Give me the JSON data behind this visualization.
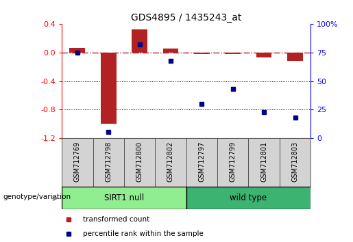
{
  "title": "GDS4895 / 1435243_at",
  "samples": [
    "GSM712769",
    "GSM712798",
    "GSM712800",
    "GSM712802",
    "GSM712797",
    "GSM712799",
    "GSM712801",
    "GSM712803"
  ],
  "transformed_count": [
    0.07,
    -1.0,
    0.33,
    0.06,
    -0.02,
    -0.02,
    -0.07,
    -0.12
  ],
  "percentile_rank": [
    75,
    5,
    82,
    68,
    30,
    43,
    23,
    18
  ],
  "groups": [
    {
      "label": "SIRT1 null",
      "n": 4,
      "color": "#90EE90"
    },
    {
      "label": "wild type",
      "n": 4,
      "color": "#3CB371"
    }
  ],
  "bar_color": "#B22222",
  "dot_color": "#00008B",
  "ylim_left": [
    -1.2,
    0.4
  ],
  "ylim_right": [
    0,
    100
  ],
  "yticks_left": [
    0.4,
    0.0,
    -0.4,
    -0.8,
    -1.2
  ],
  "yticks_right": [
    100,
    75,
    50,
    25,
    0
  ],
  "legend_entries": [
    "transformed count",
    "percentile rank within the sample"
  ],
  "group_label": "genotype/variation",
  "background_color": "#ffffff"
}
